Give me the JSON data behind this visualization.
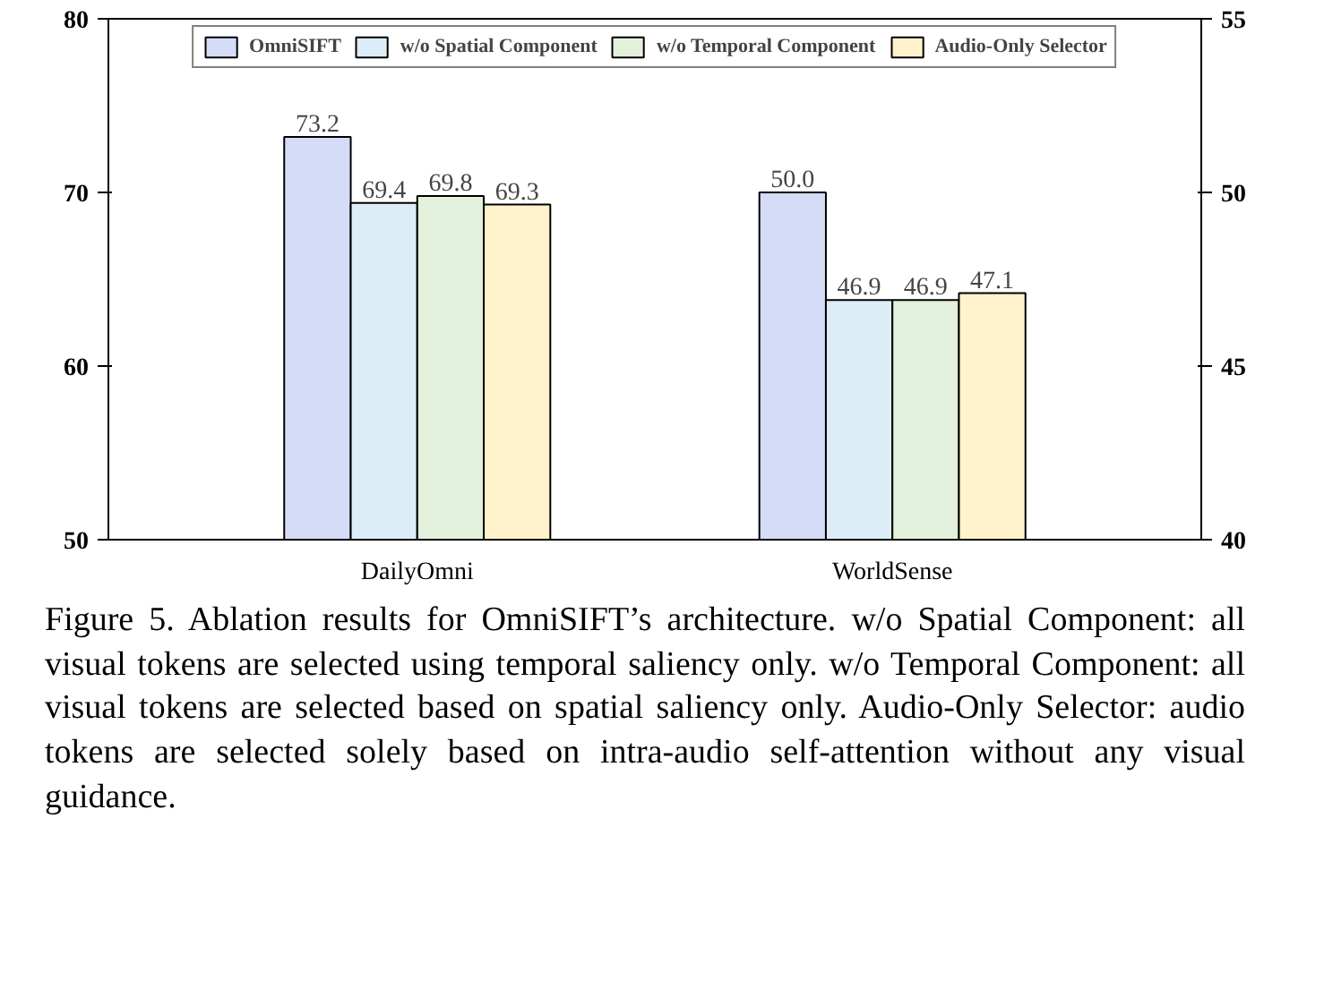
{
  "chart_data": {
    "type": "bar",
    "categories": [
      "DailyOmni",
      "WorldSense"
    ],
    "series": [
      {
        "name": "OmniSIFT",
        "color": "#d4dcf7",
        "values": [
          73.2,
          null
        ],
        "value_labels": [
          "73.2",
          null
        ]
      },
      {
        "name": "w/o Spatial Component",
        "color": "#dcedf7",
        "values": [
          69.4,
          null
        ],
        "value_labels": [
          "69.4",
          null
        ]
      },
      {
        "name": "w/o Temporal Component",
        "color": "#e3f0db",
        "values": [
          69.8,
          null
        ],
        "value_labels": [
          "69.8",
          null
        ]
      },
      {
        "name": "Audio-Only Selector",
        "color": "#fff2cc",
        "values": [
          69.3,
          null
        ],
        "value_labels": [
          "69.3",
          null
        ]
      },
      {
        "color": "#d4dcf7",
        "values": [
          null,
          50.0
        ],
        "axis": "y2",
        "value_labels": [
          null,
          "50.0"
        ]
      },
      {
        "color": "#dcedf7",
        "values": [
          null,
          46.9
        ],
        "axis": "y2",
        "value_labels": [
          null,
          "46.9"
        ]
      },
      {
        "color": "#e3f0db",
        "values": [
          null,
          46.9
        ],
        "axis": "y2",
        "value_labels": [
          null,
          "46.9"
        ]
      },
      {
        "color": "#fff2cc",
        "values": [
          null,
          47.1
        ],
        "axis": "y2",
        "value_labels": [
          null,
          "47.1"
        ]
      }
    ],
    "ylim": [
      50,
      80
    ],
    "yticks": [
      50,
      60,
      70,
      80
    ],
    "y2lim": [
      40,
      55
    ],
    "y2ticks": [
      40,
      45,
      50,
      55
    ],
    "grid": false,
    "legend": "top",
    "annotations": [
      "Figure 5. Ablation results for OmniSIFT’s architecture. w/o Spatial Component: all visual tokens are selected using temporal saliency only. w/o Temporal Component: all visual tokens are selected based on spatial saliency only. Audio-Only Selector: audio tokens are selected solely based on intra-audio self-attention without any visual guidance."
    ]
  }
}
